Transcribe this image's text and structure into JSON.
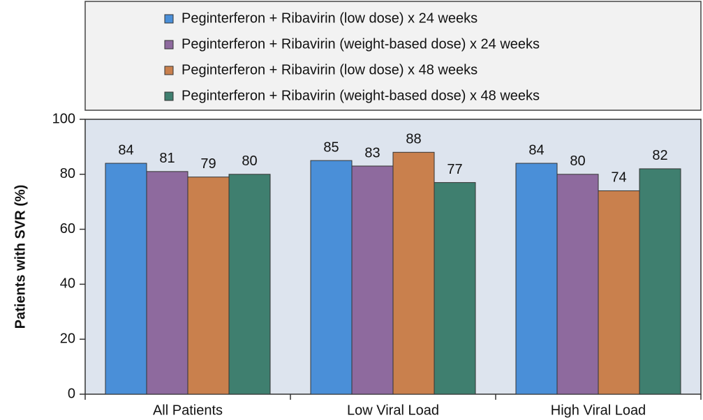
{
  "chart_data": {
    "type": "bar",
    "y_label": "Patients with SVR (%)",
    "categories": [
      "All Patients",
      "Low Viral Load",
      "High Viral Load"
    ],
    "series": [
      {
        "name": "Peginterferon + Ribavirin (low dose) x 24 weeks",
        "color": "#4a8fd8",
        "values": [
          84,
          85,
          84
        ]
      },
      {
        "name": "Peginterferon + Ribavirin (weight-based dose) x 24 weeks",
        "color": "#8e6a9e",
        "values": [
          81,
          83,
          80
        ]
      },
      {
        "name": "Peginterferon + Ribavirin (low dose) x 48 weeks",
        "color": "#c9804d",
        "values": [
          79,
          88,
          74
        ]
      },
      {
        "name": "Peginterferon + Ribavirin (weight-based dose) x 48 weeks",
        "color": "#3f7f6f",
        "values": [
          80,
          77,
          82
        ]
      }
    ],
    "ylim": [
      0,
      100
    ],
    "yticks": [
      0,
      20,
      40,
      60,
      80,
      100
    ],
    "legend": "top"
  }
}
